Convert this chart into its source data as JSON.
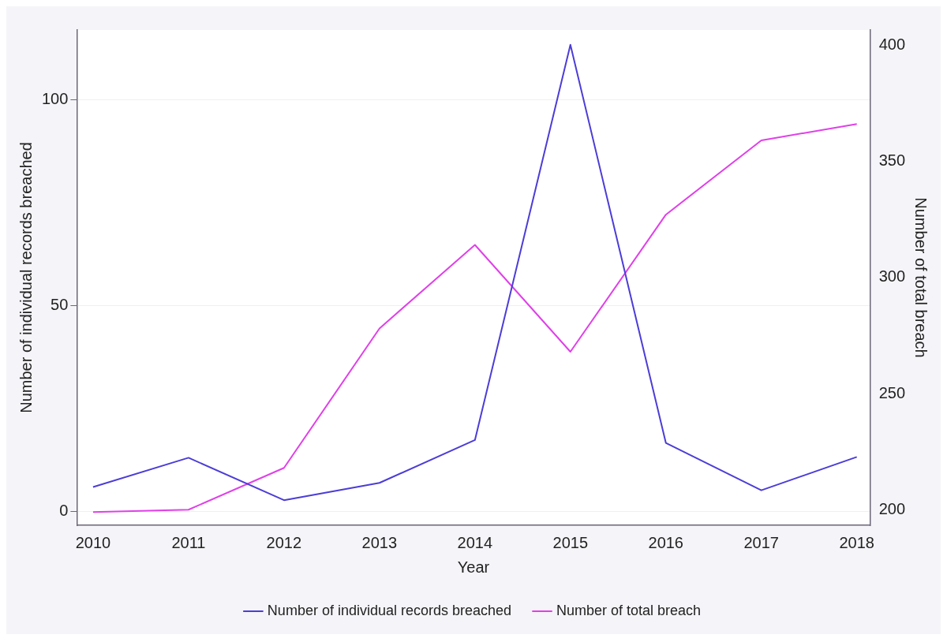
{
  "chart_data": {
    "type": "line",
    "xlabel": "Year",
    "ylabel": "Number of individual records breached",
    "y2label": "Number of total breach",
    "x": [
      2010,
      2011,
      2012,
      2013,
      2014,
      2015,
      2016,
      2017,
      2018
    ],
    "series": [
      {
        "name": "Number of individual records breached",
        "color": "#4c3dd6",
        "values": [
          5.9,
          13.0,
          2.7,
          6.9,
          17.3,
          113.3,
          16.6,
          5.1,
          13.2
        ]
      },
      {
        "name": "Number of total breach",
        "color": "#e040e8",
        "axis": "y2",
        "values": [
          199,
          200,
          218,
          278,
          314,
          268,
          327,
          359,
          366
        ]
      }
    ],
    "xlim": [
      2009.83,
      2018.14
    ],
    "xticks": [
      2010,
      2011,
      2012,
      2013,
      2014,
      2015,
      2016,
      2017,
      2018
    ],
    "ylim": [
      -3.4,
      116.9
    ],
    "yticks": [
      0,
      50,
      100
    ],
    "y2lim": [
      193.3,
      406.5
    ],
    "y2ticks": [
      200,
      250,
      300,
      350,
      400
    ],
    "grid": "y",
    "legend": "bottom",
    "marker": "none",
    "line_style": "solid"
  }
}
